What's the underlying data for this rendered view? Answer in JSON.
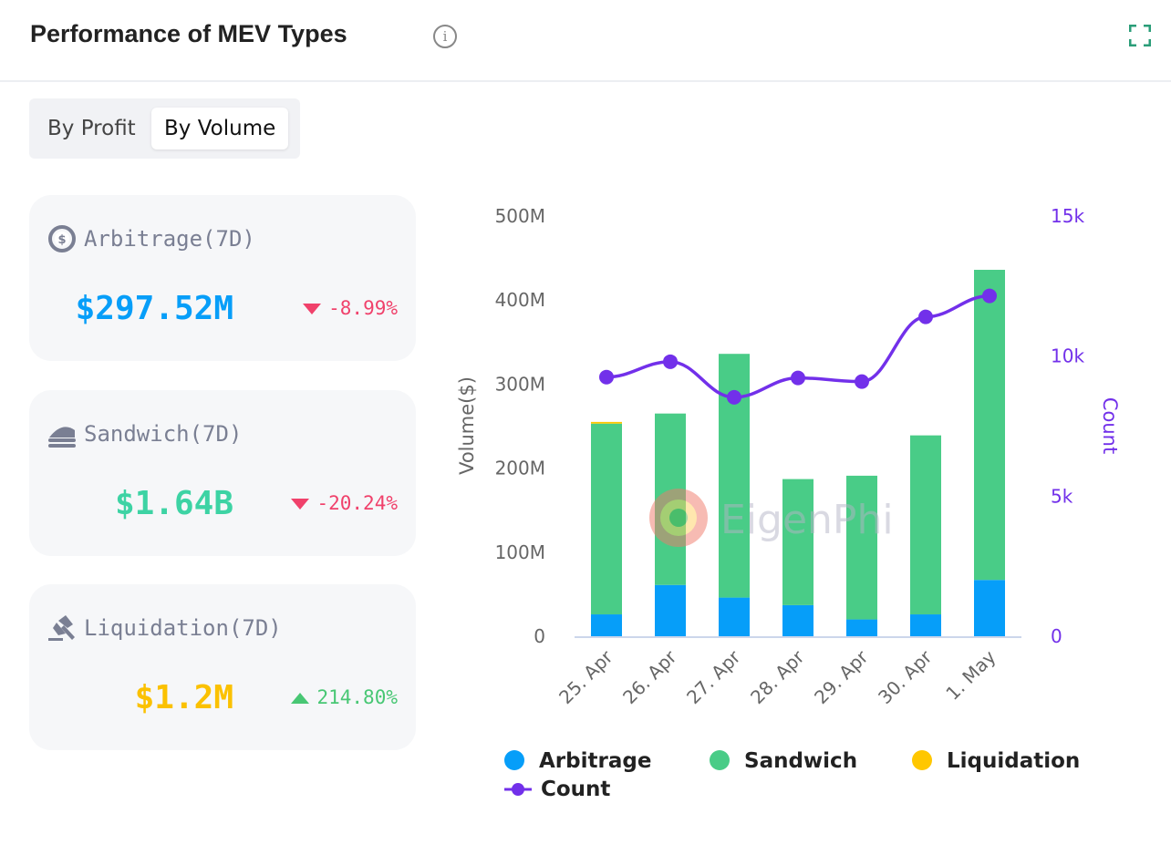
{
  "header": {
    "title": "Performance of MEV Types",
    "info_icon": "info-icon",
    "expand_icon": "expand-icon"
  },
  "toggle": {
    "options": [
      "By Profit",
      "By Volume"
    ],
    "selected": "By Volume"
  },
  "cards": [
    {
      "label": "Arbitrage(7D)",
      "value": "$297.52M",
      "change": "-8.99%",
      "direction": "down",
      "color": "#079ef9",
      "icon": "arbitrage-icon"
    },
    {
      "label": "Sandwich(7D)",
      "value": "$1.64B",
      "change": "-20.24%",
      "direction": "down",
      "color": "#3dd3a4",
      "icon": "sandwich-icon"
    },
    {
      "label": "Liquidation(7D)",
      "value": "$1.2M",
      "change": "214.80%",
      "direction": "up",
      "color": "#fbc100",
      "icon": "gavel-icon"
    }
  ],
  "colors": {
    "up": "#48c774",
    "down": "#f0416b",
    "arbitrage": "#069ef9",
    "sandwich": "#49cc87",
    "liquidation": "#ffc700",
    "count": "#7230ea"
  },
  "watermark": "EigenPhi",
  "chart_data": {
    "type": "bar",
    "categories": [
      "25. Apr",
      "26. Apr",
      "27. Apr",
      "28. Apr",
      "29. Apr",
      "30. Apr",
      "1. May"
    ],
    "stacked": true,
    "series": [
      {
        "name": "Arbitrage",
        "axis": "left",
        "values": [
          26,
          61,
          46,
          37,
          20,
          26,
          67
        ]
      },
      {
        "name": "Sandwich",
        "axis": "left",
        "values": [
          227,
          204,
          290,
          150,
          171,
          213,
          369
        ]
      },
      {
        "name": "Liquidation",
        "axis": "left",
        "values": [
          2,
          0,
          0,
          0,
          0,
          0,
          0
        ]
      },
      {
        "name": "Count",
        "type": "line",
        "axis": "right",
        "values": [
          9250,
          9800,
          8530,
          9220,
          9090,
          11400,
          12150
        ]
      }
    ],
    "ylabel": "Volume($)",
    "y2label": "Count",
    "ylim": [
      0,
      500
    ],
    "y_unit": "M",
    "y2lim": [
      0,
      15000
    ],
    "yticks": [
      "0",
      "100M",
      "200M",
      "300M",
      "400M",
      "500M"
    ],
    "y2ticks": [
      "0",
      "5k",
      "10k",
      "15k"
    ],
    "legend": [
      "Arbitrage",
      "Sandwich",
      "Liquidation",
      "Count"
    ],
    "legend_position": "bottom"
  }
}
